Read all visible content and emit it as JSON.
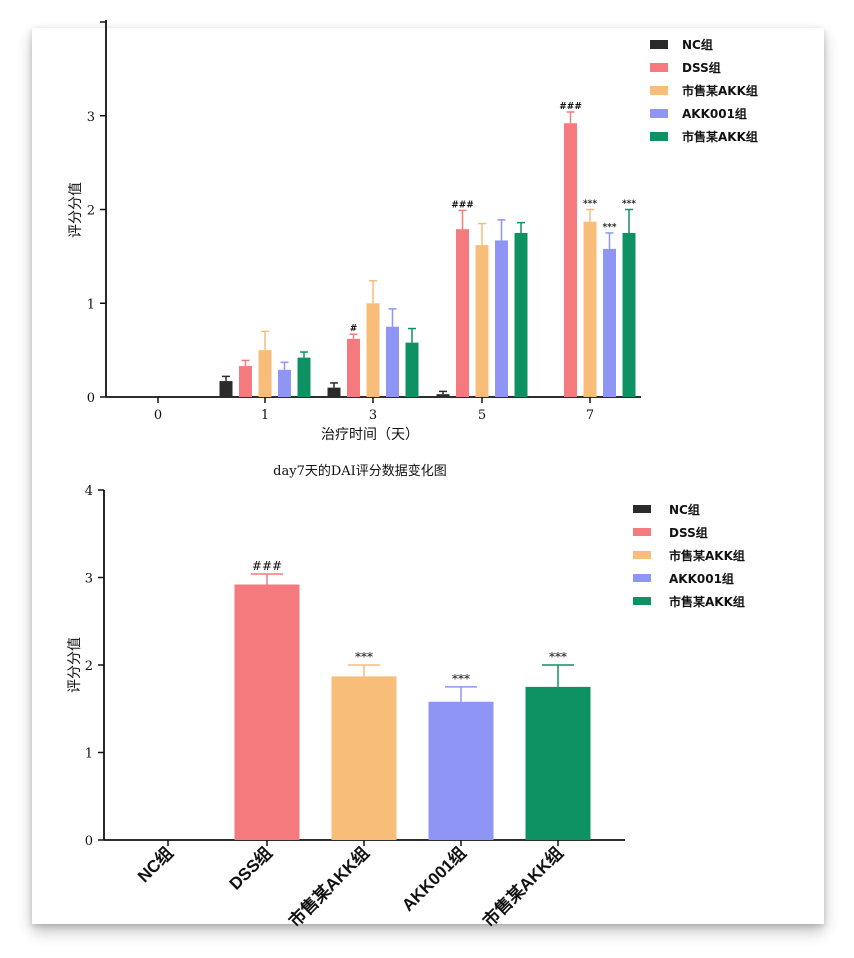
{
  "colors": {
    "NC": "#2b2b2b",
    "DSS": "#f57a7d",
    "market1": "#f9bd7a",
    "AKK001": "#8f95f4",
    "market2": "#0f9263"
  },
  "chart_data": [
    {
      "type": "bar",
      "title": "",
      "xlabel": "治疗时间（天）",
      "ylabel": "评分分值",
      "categories": [
        "0",
        "1",
        "3",
        "5",
        "7"
      ],
      "ylim": [
        0,
        4
      ],
      "yticks": [
        "0",
        "1",
        "2",
        "3"
      ],
      "legend_position": "top-right",
      "series": [
        {
          "name": "NC组",
          "color_key": "NC",
          "values": [
            0,
            0.17,
            0.1,
            0.03,
            0
          ],
          "errors": [
            0,
            0.05,
            0.05,
            0.03,
            0
          ],
          "marks": [
            "",
            "",
            "",
            "",
            ""
          ]
        },
        {
          "name": "DSS组",
          "color_key": "DSS",
          "values": [
            0,
            0.33,
            0.62,
            1.79,
            2.92
          ],
          "errors": [
            0,
            0.06,
            0.05,
            0.2,
            0.12
          ],
          "marks": [
            "",
            "",
            "#",
            "###",
            "###"
          ]
        },
        {
          "name": "市售某AKK组",
          "color_key": "market1",
          "values": [
            0,
            0.5,
            1.0,
            1.62,
            1.87
          ],
          "errors": [
            0,
            0.2,
            0.24,
            0.23,
            0.13
          ],
          "marks": [
            "",
            "",
            "",
            "",
            "***"
          ]
        },
        {
          "name": "AKK001组",
          "color_key": "AKK001",
          "values": [
            0,
            0.29,
            0.75,
            1.67,
            1.58
          ],
          "errors": [
            0,
            0.08,
            0.19,
            0.22,
            0.17
          ],
          "marks": [
            "",
            "",
            "",
            "",
            "***"
          ]
        },
        {
          "name": "市售某AKK组",
          "color_key": "market2",
          "values": [
            0,
            0.42,
            0.58,
            1.75,
            1.75
          ],
          "errors": [
            0,
            0.06,
            0.15,
            0.11,
            0.25
          ],
          "marks": [
            "",
            "",
            "",
            "",
            "***"
          ]
        }
      ]
    },
    {
      "type": "bar",
      "title": "day7天的DAI评分数据变化图",
      "xlabel": "",
      "ylabel": "评分分值",
      "categories": [
        "NC组",
        "DSS组",
        "市售某AKK组",
        "AKK001组",
        "市售某AKK组"
      ],
      "ylim": [
        0,
        4
      ],
      "yticks": [
        "0",
        "1",
        "2",
        "3",
        "4"
      ],
      "legend_position": "top-right",
      "legend": [
        "NC组",
        "DSS组",
        "市售某AKK组",
        "AKK001组",
        "市售某AKK组"
      ],
      "color_keys": [
        "NC",
        "DSS",
        "market1",
        "AKK001",
        "market2"
      ],
      "values": [
        0,
        2.92,
        1.87,
        1.58,
        1.75
      ],
      "errors": [
        0,
        0.12,
        0.13,
        0.17,
        0.25
      ],
      "marks": [
        "",
        "###",
        "***",
        "***",
        "***"
      ]
    }
  ]
}
